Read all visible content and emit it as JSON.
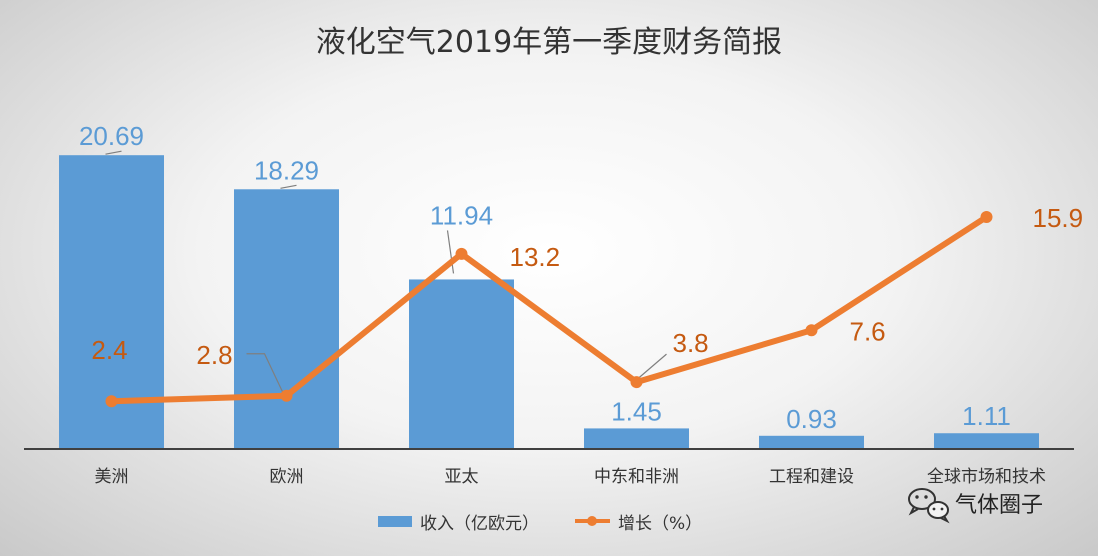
{
  "chart_data": {
    "type": "bar",
    "title": "液化空气2019年第一季度财务简报",
    "categories": [
      "美洲",
      "欧洲",
      "亚太",
      "中东和非洲",
      "工程和建设",
      "全球市场和技术"
    ],
    "series": [
      {
        "name": "收入（亿欧元）",
        "type": "bar",
        "values": [
          20.69,
          18.29,
          11.94,
          1.45,
          0.93,
          1.11
        ],
        "labels": [
          "20.69",
          "18.29",
          "11.94",
          "1.45",
          "0.93",
          "1.11"
        ],
        "color": "#5b9bd5"
      },
      {
        "name": "增长（%）",
        "type": "line",
        "values": [
          2.4,
          2.8,
          13.2,
          3.8,
          7.6,
          15.9
        ],
        "labels": [
          "2.4",
          "2.8",
          "13.2",
          "3.8",
          "7.6",
          "15.9"
        ],
        "color": "#ed7d31"
      }
    ],
    "legend_position": "bottom",
    "grid": false
  },
  "watermark": {
    "text": "气体圈子",
    "icon": "wechat-icon"
  },
  "colors": {
    "bar": "#5b9bd5",
    "line": "#ed7d31",
    "line_label": "#c55a11"
  }
}
